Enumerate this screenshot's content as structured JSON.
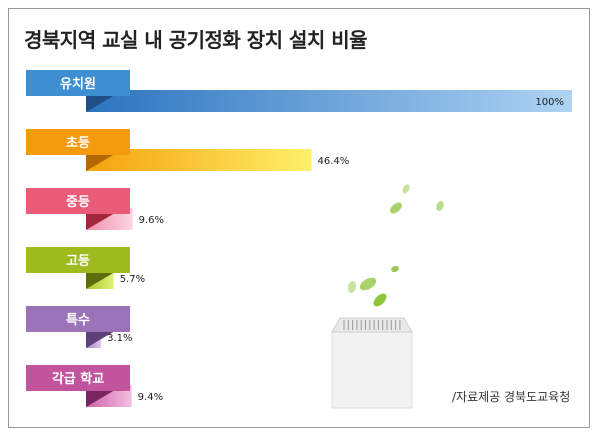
{
  "chart_data": {
    "type": "bar",
    "orientation": "horizontal",
    "title": "경북지역 교실 내 공기정화 장치 설치 비율",
    "categories": [
      "유치원",
      "초등",
      "중등",
      "고등",
      "특수",
      "각급 학교"
    ],
    "values": [
      100,
      46.4,
      9.6,
      5.7,
      3.1,
      9.4
    ],
    "value_labels": [
      "100%",
      "46.4%",
      "9.6%",
      "5.7%",
      "3.1%",
      "9.4%"
    ],
    "xlim": [
      0,
      100
    ],
    "grid": false,
    "legend": "none"
  },
  "source": "/자료제공 경북도교육청",
  "colors": {
    "kindergarten": {
      "label": "#3d8fd1",
      "fold": "#1e4f86",
      "bar_start": "#2b73bf",
      "bar_end": "#aed3f3"
    },
    "elementary": {
      "label": "#f39a0f",
      "fold": "#b56800",
      "bar_start": "#f5a10c",
      "bar_end": "#fff06a"
    },
    "middle": {
      "label": "#ea5b7a",
      "fold": "#a3263f",
      "bar_start": "#ef8fab",
      "bar_end": "#fbd5e2"
    },
    "high": {
      "label": "#9dbb1f",
      "fold": "#5a6f0c",
      "bar_start": "#a9c62a",
      "bar_end": "#e3f27a"
    },
    "special": {
      "label": "#9a73b8",
      "fold": "#5d3f7a",
      "bar_start": "#a383c2",
      "bar_end": "#dcc8ec"
    },
    "all_schools": {
      "label": "#c1549c",
      "fold": "#7a2461",
      "bar_start": "#cf5fa8",
      "bar_end": "#f3c0e1"
    }
  },
  "illustration": {
    "object": "air-purifier-icon",
    "leaves": "leaf-icon",
    "leaf_color": "#8cc63f",
    "body_color": "#efefef"
  }
}
